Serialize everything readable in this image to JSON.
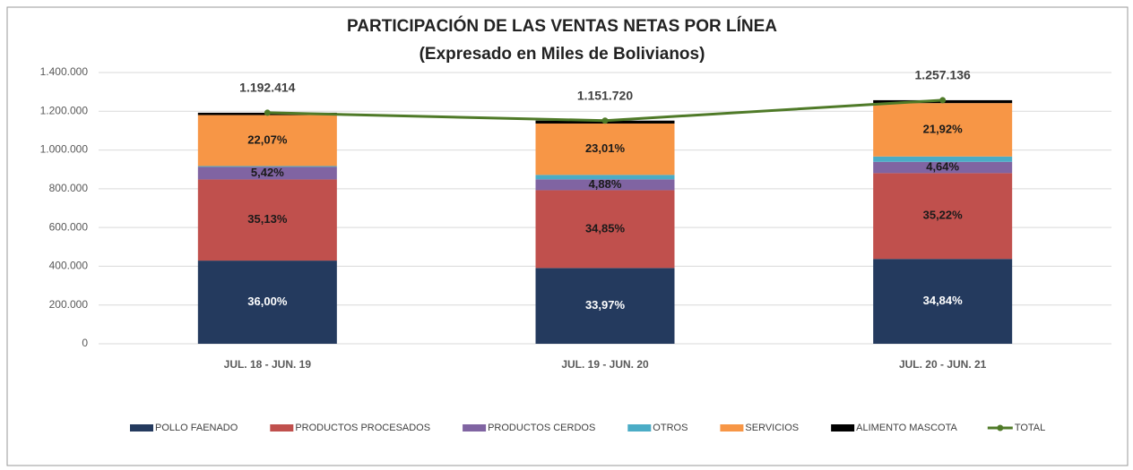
{
  "chart_data": {
    "type": "stacked_bar_line",
    "title": "PARTICIPACIÓN DE LAS VENTAS NETAS POR LÍNEA",
    "subtitle": "(Expresado en Miles de Bolivianos)",
    "categories": [
      "JUL. 18 - JUN. 19",
      "JUL. 19 - JUN. 20",
      "JUL. 20 - JUN. 21"
    ],
    "ylim": [
      0,
      1400000
    ],
    "yticks": [
      0,
      {
        "value": 200000,
        "label": "200.000"
      },
      {
        "value": 400000,
        "label": "400.000"
      },
      {
        "value": 600000,
        "label": "600.000"
      },
      {
        "value": 800000,
        "label": "800.000"
      },
      {
        "value": 1000000,
        "label": "1.000.000"
      },
      {
        "value": 1200000,
        "label": "1.200.000"
      },
      {
        "value": 1400000,
        "label": "1.400.000"
      }
    ],
    "grid": true,
    "legend": "bottom",
    "series": [
      {
        "name": "POLLO FAENADO",
        "type": "bar",
        "color": "#243a5e",
        "values": [
          429269,
          391239,
          437986
        ],
        "share_labels": [
          "36,00%",
          "33,97%",
          "34,84%"
        ]
      },
      {
        "name": "PRODUCTOS PROCESADOS",
        "type": "bar",
        "color": "#c0504d",
        "values": [
          418895,
          401374,
          442763
        ],
        "share_labels": [
          "35,13%",
          "34,85%",
          "35,22%"
        ]
      },
      {
        "name": "PRODUCTOS CERDOS",
        "type": "bar",
        "color": "#8064a2",
        "values": [
          64629,
          56204,
          58331
        ],
        "share_labels": [
          "5,42%",
          "4,88%",
          "4,64%"
        ]
      },
      {
        "name": "OTROS",
        "type": "bar",
        "color": "#4bacc6",
        "values": [
          4455,
          22892,
          27492
        ]
      },
      {
        "name": "SERVICIOS",
        "type": "bar",
        "color": "#f79646",
        "values": [
          263166,
          265011,
          275564
        ],
        "share_labels": [
          "22,07%",
          "23,01%",
          "21,92%"
        ]
      },
      {
        "name": "ALIMENTO MASCOTA",
        "type": "bar",
        "color": "#000000",
        "values": [
          12000,
          15000,
          15000
        ]
      },
      {
        "name": "TOTAL",
        "type": "line",
        "color": "#4f7a28",
        "values": [
          1192414,
          1151720,
          1257136
        ],
        "value_labels": [
          "1.192.414",
          "1.151.720",
          "1.257.136"
        ]
      }
    ]
  }
}
